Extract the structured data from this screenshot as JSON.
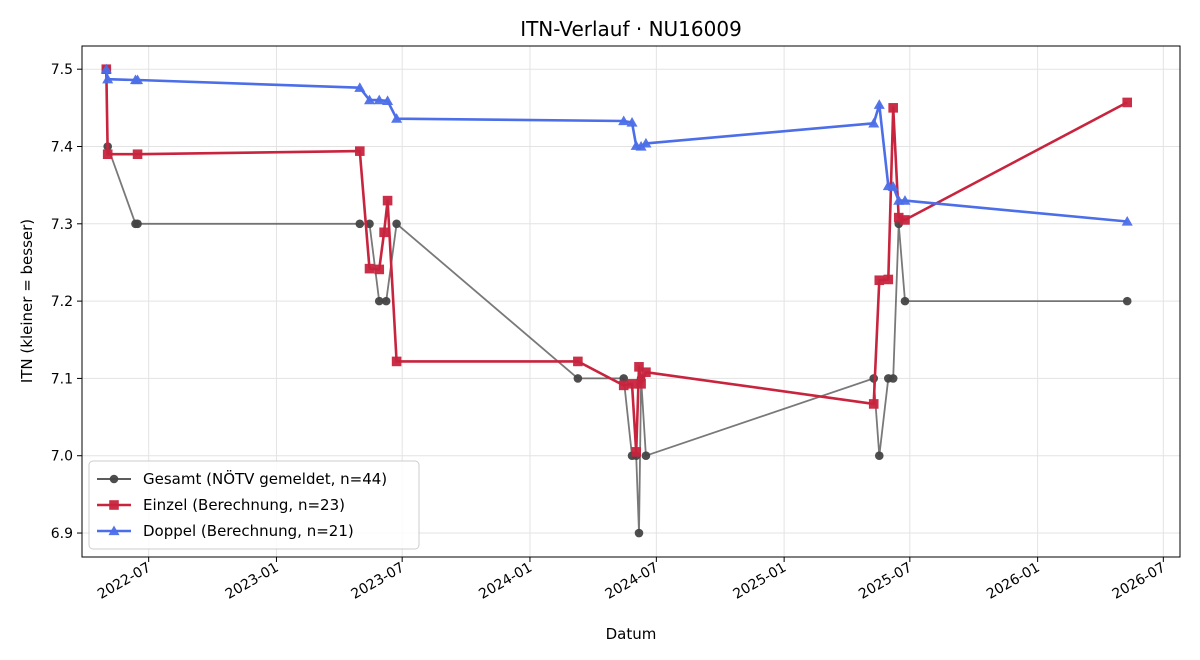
{
  "chart_data": {
    "type": "line",
    "title": "ITN-Verlauf · NU16009",
    "xlabel": "Datum",
    "ylabel": "ITN  (kleiner = besser)",
    "xlim": [
      "2022-03-27",
      "2026-07-25"
    ],
    "ylim": [
      6.869,
      7.53
    ],
    "x_ticks": [
      {
        "date": "2022-07-01",
        "label": "2022-07"
      },
      {
        "date": "2023-01-01",
        "label": "2023-01"
      },
      {
        "date": "2023-07-01",
        "label": "2023-07"
      },
      {
        "date": "2024-01-01",
        "label": "2024-01"
      },
      {
        "date": "2024-07-01",
        "label": "2024-07"
      },
      {
        "date": "2025-01-01",
        "label": "2025-01"
      },
      {
        "date": "2025-07-01",
        "label": "2025-07"
      },
      {
        "date": "2026-01-01",
        "label": "2026-01"
      },
      {
        "date": "2026-07-01",
        "label": "2026-07"
      }
    ],
    "y_ticks": [
      {
        "value": 6.9,
        "label": "6.9"
      },
      {
        "value": 7.0,
        "label": "7.0"
      },
      {
        "value": 7.1,
        "label": "7.1"
      },
      {
        "value": 7.2,
        "label": "7.2"
      },
      {
        "value": 7.3,
        "label": "7.3"
      },
      {
        "value": 7.4,
        "label": "7.4"
      },
      {
        "value": 7.5,
        "label": "7.5"
      }
    ],
    "grid": true,
    "legend_position": "lower-left",
    "series": [
      {
        "name": "Gesamt (NÖTV gemeldet, n=44)",
        "color": "#454545",
        "marker": "circle",
        "points": [
          {
            "x": "2022-05-01",
            "y": 7.5
          },
          {
            "x": "2022-05-03",
            "y": 7.4
          },
          {
            "x": "2022-06-12",
            "y": 7.3
          },
          {
            "x": "2022-06-15",
            "y": 7.3
          },
          {
            "x": "2023-05-01",
            "y": 7.3
          },
          {
            "x": "2023-05-15",
            "y": 7.3
          },
          {
            "x": "2023-05-29",
            "y": 7.2
          },
          {
            "x": "2023-06-08",
            "y": 7.2
          },
          {
            "x": "2023-06-23",
            "y": 7.3
          },
          {
            "x": "2024-03-10",
            "y": 7.1
          },
          {
            "x": "2024-05-15",
            "y": 7.1
          },
          {
            "x": "2024-05-27",
            "y": 7.0
          },
          {
            "x": "2024-06-02",
            "y": 7.0
          },
          {
            "x": "2024-06-06",
            "y": 6.9
          },
          {
            "x": "2024-06-09",
            "y": 7.1
          },
          {
            "x": "2024-06-16",
            "y": 7.0
          },
          {
            "x": "2025-05-10",
            "y": 7.1
          },
          {
            "x": "2025-05-18",
            "y": 7.0
          },
          {
            "x": "2025-05-31",
            "y": 7.1
          },
          {
            "x": "2025-06-07",
            "y": 7.1
          },
          {
            "x": "2025-06-15",
            "y": 7.3
          },
          {
            "x": "2025-06-24",
            "y": 7.2
          },
          {
            "x": "2026-05-10",
            "y": 7.2
          }
        ]
      },
      {
        "name": "Einzel (Berechnung, n=23)",
        "color": "#c8243e",
        "marker": "square",
        "points": [
          {
            "x": "2022-05-01",
            "y": 7.5
          },
          {
            "x": "2022-05-03",
            "y": 7.39
          },
          {
            "x": "2022-06-15",
            "y": 7.39
          },
          {
            "x": "2023-05-01",
            "y": 7.394
          },
          {
            "x": "2023-05-15",
            "y": 7.242
          },
          {
            "x": "2023-05-29",
            "y": 7.241
          },
          {
            "x": "2023-06-05",
            "y": 7.289
          },
          {
            "x": "2023-06-10",
            "y": 7.33
          },
          {
            "x": "2023-06-23",
            "y": 7.122
          },
          {
            "x": "2024-03-10",
            "y": 7.122
          },
          {
            "x": "2024-05-15",
            "y": 7.091
          },
          {
            "x": "2024-05-27",
            "y": 7.093
          },
          {
            "x": "2024-06-02",
            "y": 7.005
          },
          {
            "x": "2024-06-06",
            "y": 7.115
          },
          {
            "x": "2024-06-09",
            "y": 7.093
          },
          {
            "x": "2024-06-16",
            "y": 7.108
          },
          {
            "x": "2025-05-10",
            "y": 7.067
          },
          {
            "x": "2025-05-18",
            "y": 7.227
          },
          {
            "x": "2025-05-31",
            "y": 7.228
          },
          {
            "x": "2025-06-07",
            "y": 7.45
          },
          {
            "x": "2025-06-15",
            "y": 7.308
          },
          {
            "x": "2025-06-24",
            "y": 7.305
          },
          {
            "x": "2026-05-10",
            "y": 7.457
          }
        ]
      },
      {
        "name": "Doppel (Berechnung, n=21)",
        "color": "#4c6ee8",
        "marker": "triangle",
        "points": [
          {
            "x": "2022-05-01",
            "y": 7.5
          },
          {
            "x": "2022-05-03",
            "y": 7.487
          },
          {
            "x": "2022-06-12",
            "y": 7.486
          },
          {
            "x": "2022-06-15",
            "y": 7.486
          },
          {
            "x": "2023-05-01",
            "y": 7.476
          },
          {
            "x": "2023-05-15",
            "y": 7.46
          },
          {
            "x": "2023-05-29",
            "y": 7.46
          },
          {
            "x": "2023-06-10",
            "y": 7.459
          },
          {
            "x": "2023-06-23",
            "y": 7.436
          },
          {
            "x": "2024-05-15",
            "y": 7.433
          },
          {
            "x": "2024-05-27",
            "y": 7.431
          },
          {
            "x": "2024-06-02",
            "y": 7.401
          },
          {
            "x": "2024-06-09",
            "y": 7.4
          },
          {
            "x": "2024-06-16",
            "y": 7.404
          },
          {
            "x": "2025-05-10",
            "y": 7.43
          },
          {
            "x": "2025-05-18",
            "y": 7.454
          },
          {
            "x": "2025-05-31",
            "y": 7.349
          },
          {
            "x": "2025-06-07",
            "y": 7.348
          },
          {
            "x": "2025-06-15",
            "y": 7.33
          },
          {
            "x": "2025-06-24",
            "y": 7.33
          },
          {
            "x": "2026-05-10",
            "y": 7.303
          }
        ]
      }
    ]
  }
}
